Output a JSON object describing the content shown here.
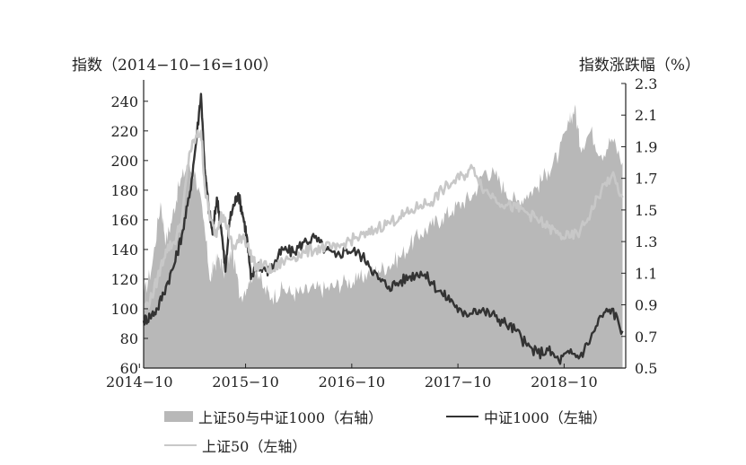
{
  "chart_data": {
    "type": "line",
    "left_axis_title": "指数（2014−10−16=100）",
    "right_axis_title": "指数涨跌幅（%）",
    "x_ticks": [
      "2014−10",
      "2015−10",
      "2016−10",
      "2017−10",
      "2018−10"
    ],
    "y_left_ticks": [
      "60",
      "80",
      "100",
      "120",
      "140",
      "160",
      "180",
      "200",
      "220",
      "240"
    ],
    "y_right_ticks": [
      "0.5",
      "0.7",
      "0.9",
      "1.1",
      "1.3",
      "1.5",
      "1.7",
      "1.9",
      "2.1",
      "2.3"
    ],
    "ylim_left": [
      60,
      252
    ],
    "ylim_right": [
      0.5,
      2.3
    ],
    "xlim": [
      2014.79,
      2019.33
    ],
    "series": [
      {
        "name": "上证50与中证1000（右轴）",
        "axis": "right",
        "kind": "area",
        "color": "#b8b8b8",
        "x": [
          2014.79,
          2014.87,
          2014.95,
          2015.0,
          2015.06,
          2015.12,
          2015.2,
          2015.28,
          2015.35,
          2015.42,
          2015.45,
          2015.5,
          2015.55,
          2015.62,
          2015.7,
          2015.78,
          2015.85,
          2015.92,
          2016.0,
          2016.1,
          2016.2,
          2016.3,
          2016.4,
          2016.5,
          2016.6,
          2016.7,
          2016.8,
          2016.9,
          2017.0,
          2017.1,
          2017.2,
          2017.3,
          2017.4,
          2017.5,
          2017.6,
          2017.7,
          2017.8,
          2017.9,
          2018.0,
          2018.1,
          2018.2,
          2018.3,
          2018.4,
          2018.5,
          2018.6,
          2018.7,
          2018.8,
          2018.85,
          2018.9,
          2019.0,
          2019.1,
          2019.2,
          2019.3
        ],
        "values": [
          0.95,
          1.15,
          1.55,
          1.3,
          1.45,
          1.65,
          1.78,
          1.72,
          1.45,
          1.05,
          1.15,
          1.2,
          1.1,
          1.25,
          0.95,
          1.05,
          1.15,
          1.0,
          0.95,
          1.0,
          0.97,
          0.98,
          1.0,
          1.0,
          1.02,
          1.05,
          1.05,
          1.1,
          1.12,
          1.15,
          1.2,
          1.28,
          1.35,
          1.4,
          1.45,
          1.5,
          1.55,
          1.6,
          1.75,
          1.72,
          1.62,
          1.55,
          1.6,
          1.65,
          1.75,
          1.85,
          2.05,
          2.15,
          1.9,
          2.0,
          1.85,
          1.95,
          1.8
        ]
      },
      {
        "name": "中证1000（左轴）",
        "axis": "left",
        "color": "#333333",
        "x": [
          2014.79,
          2014.85,
          2014.92,
          2015.0,
          2015.08,
          2015.15,
          2015.22,
          2015.28,
          2015.33,
          2015.37,
          2015.4,
          2015.44,
          2015.48,
          2015.52,
          2015.56,
          2015.6,
          2015.64,
          2015.68,
          2015.72,
          2015.76,
          2015.8,
          2015.86,
          2015.92,
          2015.97,
          2016.02,
          2016.1,
          2016.2,
          2016.3,
          2016.4,
          2016.5,
          2016.6,
          2016.7,
          2016.8,
          2016.9,
          2017.0,
          2017.1,
          2017.2,
          2017.3,
          2017.4,
          2017.5,
          2017.6,
          2017.7,
          2017.8,
          2017.9,
          2018.0,
          2018.1,
          2018.2,
          2018.3,
          2018.4,
          2018.5,
          2018.6,
          2018.7,
          2018.8,
          2018.9,
          2019.0,
          2019.1,
          2019.2,
          2019.3
        ],
        "values": [
          92,
          95,
          100,
          115,
          130,
          150,
          175,
          210,
          245,
          190,
          170,
          150,
          175,
          155,
          125,
          160,
          170,
          178,
          165,
          150,
          120,
          130,
          128,
          125,
          130,
          140,
          138,
          145,
          148,
          140,
          135,
          140,
          138,
          132,
          120,
          115,
          118,
          122,
          125,
          118,
          110,
          105,
          95,
          100,
          98,
          95,
          90,
          85,
          75,
          70,
          72,
          65,
          70,
          68,
          80,
          95,
          100,
          85
        ]
      },
      {
        "name": "上证50（左轴）",
        "axis": "left",
        "color": "#c8c8c8",
        "x": [
          2014.79,
          2014.85,
          2014.92,
          2015.0,
          2015.08,
          2015.15,
          2015.22,
          2015.28,
          2015.33,
          2015.37,
          2015.42,
          2015.47,
          2015.52,
          2015.58,
          2015.63,
          2015.68,
          2015.73,
          2015.78,
          2015.85,
          2015.92,
          2016.0,
          2016.1,
          2016.2,
          2016.3,
          2016.4,
          2016.5,
          2016.6,
          2016.7,
          2016.8,
          2016.9,
          2017.0,
          2017.1,
          2017.2,
          2017.3,
          2017.4,
          2017.5,
          2017.6,
          2017.7,
          2017.8,
          2017.9,
          2018.0,
          2018.1,
          2018.2,
          2018.3,
          2018.4,
          2018.5,
          2018.6,
          2018.7,
          2018.8,
          2018.9,
          2019.0,
          2019.1,
          2019.2,
          2019.3
        ],
        "values": [
          100,
          105,
          120,
          140,
          145,
          160,
          205,
          215,
          220,
          180,
          160,
          150,
          165,
          155,
          140,
          145,
          150,
          140,
          128,
          130,
          125,
          132,
          135,
          138,
          140,
          142,
          140,
          145,
          148,
          150,
          155,
          158,
          162,
          165,
          170,
          172,
          180,
          185,
          190,
          195,
          180,
          175,
          170,
          168,
          165,
          160,
          155,
          150,
          148,
          152,
          165,
          180,
          190,
          175
        ]
      }
    ],
    "legend": [
      {
        "label": "上证50与中证1000（右轴）",
        "style": "area"
      },
      {
        "label": "中证1000（左轴）",
        "style": "dark-line"
      },
      {
        "label": "上证50（左轴）",
        "style": "light-line"
      }
    ]
  }
}
